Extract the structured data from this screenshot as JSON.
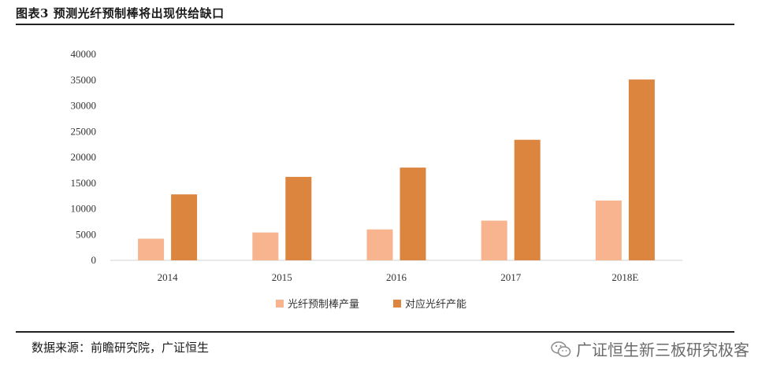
{
  "figure_title": "图表3 预测光纤预制棒将出现供给缺口",
  "source": "数据来源：前瞻研究院，广证恒生",
  "watermark": "广证恒生新三板研究极客",
  "chart_data": {
    "type": "bar",
    "categories": [
      "2014",
      "2015",
      "2016",
      "2017",
      "2018E"
    ],
    "series": [
      {
        "name": "光纤预制棒产量",
        "color": "#f8b48e",
        "values": [
          4200,
          5400,
          6000,
          7700,
          11600
        ]
      },
      {
        "name": "对应光纤产能",
        "color": "#dc853f",
        "values": [
          12800,
          16200,
          18000,
          23400,
          35100
        ]
      }
    ],
    "yticks": [
      0,
      5000,
      10000,
      15000,
      20000,
      25000,
      30000,
      35000,
      40000
    ],
    "ylim": [
      0,
      40000
    ],
    "grid": false,
    "legend_position": "bottom"
  }
}
